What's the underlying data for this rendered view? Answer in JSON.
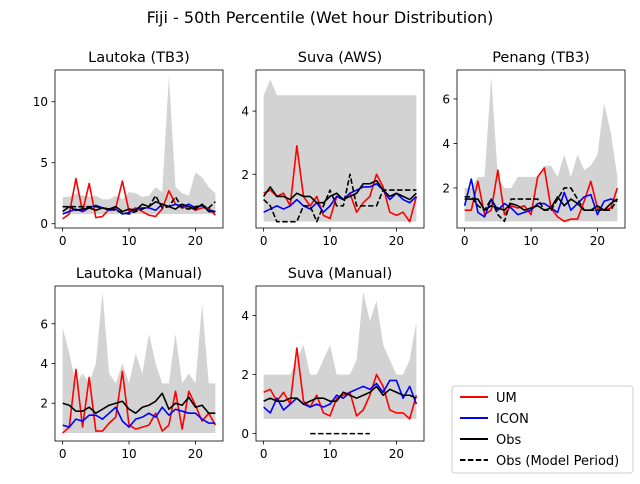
{
  "suptitle": "Fiji - 50th Percentile (Wet hour Distribution)",
  "colors": {
    "um": "#ff0000",
    "icon": "#0000ff",
    "obs": "#000000",
    "band": "#d3d3d3"
  },
  "legend": {
    "placement": "lower-right",
    "entries": [
      {
        "label": "UM",
        "color": "#ff0000",
        "style": "solid"
      },
      {
        "label": "ICON",
        "color": "#0000ff",
        "style": "solid"
      },
      {
        "label": "Obs",
        "color": "#000000",
        "style": "solid"
      },
      {
        "label": "Obs (Model Period)",
        "color": "#000000",
        "style": "dashed"
      }
    ]
  },
  "chart_data": [
    {
      "type": "line",
      "title": "Lautoka (TB3)",
      "xlim": [
        -1.15,
        24.15
      ],
      "ylim": [
        -0.35,
        12.6
      ],
      "xticks": [
        0,
        10,
        20
      ],
      "yticks": [
        0,
        5,
        10
      ],
      "band_lower": [
        0.8,
        0.8,
        0.8,
        0.8,
        0.8,
        0.8,
        0.8,
        0.8,
        0.8,
        0.8,
        0.8,
        0.8,
        0.8,
        0.8,
        0.8,
        0.8,
        0.8,
        0.8,
        0.8,
        0.8,
        0.8,
        0.8,
        0.8,
        0.8
      ],
      "band_upper": [
        2.2,
        2.2,
        2.5,
        2.3,
        2.2,
        2.3,
        2.0,
        2.0,
        2.3,
        2.0,
        2.6,
        2.5,
        2.2,
        2.3,
        3.0,
        2.6,
        12.1,
        3.0,
        2.5,
        2.3,
        4.2,
        3.8,
        3.0,
        2.5
      ],
      "series": [
        {
          "name": "UM",
          "values": [
            0.4,
            0.8,
            3.7,
            1.0,
            3.3,
            0.5,
            0.6,
            1.2,
            1.3,
            3.5,
            1.0,
            1.3,
            1.0,
            0.7,
            0.6,
            1.2,
            2.7,
            1.6,
            1.3,
            1.4,
            1.1,
            1.3,
            1.3,
            0.7
          ]
        },
        {
          "name": "ICON",
          "values": [
            0.8,
            1.0,
            1.2,
            1.0,
            1.3,
            1.5,
            1.3,
            1.1,
            1.2,
            0.8,
            0.9,
            1.2,
            1.3,
            1.3,
            1.1,
            1.6,
            1.4,
            1.6,
            1.4,
            1.6,
            1.3,
            1.5,
            1.1,
            1.0
          ]
        },
        {
          "name": "Obs",
          "values": [
            1.0,
            1.4,
            1.1,
            1.2,
            1.3,
            1.1,
            1.3,
            1.2,
            1.4,
            1.0,
            1.2,
            1.1,
            1.6,
            1.4,
            1.8,
            1.6,
            1.4,
            1.2,
            1.6,
            1.4,
            1.2,
            1.6,
            1.0,
            1.0
          ]
        },
        {
          "name": "Obs (Model Period)",
          "values": [
            1.4,
            1.4,
            1.4,
            1.4,
            1.4,
            1.4,
            1.3,
            1.2,
            1.1,
            0.9,
            0.8,
            1.0,
            1.2,
            1.4,
            2.3,
            1.3,
            1.4,
            2.2,
            1.3,
            1.2,
            1.4,
            1.5,
            1.3,
            1.8
          ]
        }
      ]
    },
    {
      "type": "line",
      "title": "Suva (AWS)",
      "xlim": [
        -1.15,
        24.15
      ],
      "ylim": [
        0.3,
        5.3
      ],
      "xticks": [
        0,
        10,
        20
      ],
      "yticks": [
        2,
        4
      ],
      "band_lower": [
        0.5,
        0.5,
        0.5,
        0.5,
        0.5,
        0.5,
        0.5,
        0.5,
        0.5,
        0.5,
        0.5,
        0.5,
        0.5,
        0.5,
        0.5,
        0.5,
        0.5,
        0.5,
        0.5,
        0.5,
        0.5,
        0.5,
        0.5,
        0.5
      ],
      "band_upper": [
        4.5,
        5.0,
        4.5,
        4.5,
        4.5,
        4.5,
        4.5,
        4.5,
        4.5,
        4.5,
        4.5,
        4.5,
        4.5,
        4.5,
        4.5,
        4.5,
        4.5,
        4.5,
        4.5,
        4.5,
        4.5,
        4.5,
        4.5,
        4.5
      ],
      "series": [
        {
          "name": "UM",
          "values": [
            1.4,
            1.5,
            1.3,
            1.4,
            1.0,
            2.9,
            1.3,
            1.0,
            1.3,
            0.7,
            0.6,
            1.3,
            1.2,
            1.4,
            0.8,
            1.1,
            1.3,
            2.0,
            1.6,
            0.8,
            0.7,
            0.8,
            0.5,
            1.3
          ]
        },
        {
          "name": "ICON",
          "values": [
            0.8,
            0.9,
            1.0,
            0.9,
            1.0,
            1.2,
            1.0,
            0.9,
            1.1,
            0.8,
            1.0,
            1.3,
            1.2,
            1.4,
            1.5,
            1.6,
            1.6,
            1.7,
            1.5,
            1.2,
            1.4,
            1.2,
            1.1,
            1.3
          ]
        },
        {
          "name": "Obs",
          "values": [
            1.3,
            1.6,
            1.3,
            1.3,
            1.2,
            1.4,
            1.3,
            1.3,
            1.1,
            1.1,
            1.3,
            1.4,
            1.2,
            1.3,
            1.4,
            1.7,
            1.7,
            1.8,
            1.5,
            1.3,
            1.4,
            1.3,
            1.2,
            1.4
          ]
        },
        {
          "name": "Obs (Model Period)",
          "values": [
            1.2,
            1.0,
            0.5,
            0.5,
            0.5,
            0.5,
            1.0,
            1.0,
            0.5,
            1.0,
            1.5,
            1.0,
            1.0,
            2.0,
            1.0,
            1.0,
            1.0,
            1.0,
            1.5,
            1.5,
            1.5,
            1.5,
            1.5,
            1.5
          ]
        }
      ]
    },
    {
      "type": "line",
      "title": "Penang (TB3)",
      "xlim": [
        -1.15,
        24.15
      ],
      "ylim": [
        0.2,
        7.3
      ],
      "xticks": [
        0,
        10,
        20
      ],
      "yticks": [
        2,
        4,
        6
      ],
      "band_lower": [
        0.5,
        0.5,
        0.5,
        0.5,
        0.5,
        0.5,
        0.5,
        0.5,
        0.5,
        0.5,
        0.5,
        0.5,
        0.5,
        0.5,
        0.5,
        0.5,
        0.5,
        0.5,
        0.5,
        0.5,
        0.5,
        0.5,
        0.5,
        0.5
      ],
      "band_upper": [
        2.0,
        2.0,
        2.5,
        2.5,
        7.0,
        2.5,
        2.0,
        2.0,
        2.5,
        2.5,
        2.5,
        2.5,
        3.0,
        3.0,
        2.5,
        3.5,
        2.5,
        3.5,
        2.8,
        3.0,
        3.5,
        5.8,
        4.5,
        2.5
      ],
      "series": [
        {
          "name": "UM",
          "values": [
            1.0,
            1.0,
            2.3,
            0.8,
            1.0,
            2.8,
            0.8,
            1.2,
            1.1,
            1.2,
            0.8,
            2.5,
            2.9,
            1.1,
            0.7,
            0.5,
            0.6,
            0.6,
            1.4,
            2.3,
            1.1,
            1.0,
            1.1,
            2.0
          ]
        },
        {
          "name": "ICON",
          "values": [
            1.2,
            2.4,
            0.9,
            0.7,
            1.5,
            1.0,
            1.3,
            1.1,
            0.8,
            0.9,
            1.0,
            1.3,
            1.3,
            1.1,
            0.9,
            1.8,
            1.0,
            1.3,
            1.6,
            1.7,
            0.8,
            1.4,
            1.5,
            1.4
          ]
        },
        {
          "name": "Obs",
          "values": [
            1.5,
            1.5,
            1.5,
            1.0,
            1.2,
            1.1,
            1.0,
            1.3,
            1.2,
            1.0,
            1.1,
            1.2,
            1.0,
            1.1,
            1.6,
            1.2,
            1.5,
            1.3,
            1.0,
            1.0,
            1.2,
            1.0,
            1.3,
            1.5
          ]
        },
        {
          "name": "Obs (Model Period)",
          "values": [
            1.6,
            1.6,
            1.2,
            1.0,
            1.5,
            0.8,
            0.5,
            1.5,
            1.5,
            1.5,
            1.5,
            1.5,
            1.0,
            1.0,
            1.5,
            2.0,
            2.0,
            1.5,
            1.0,
            1.0,
            1.0,
            1.0,
            1.0,
            1.5
          ]
        }
      ]
    },
    {
      "type": "line",
      "title": "Lautoka (Manual)",
      "xlim": [
        -1.15,
        24.15
      ],
      "ylim": [
        0.1,
        7.9
      ],
      "xticks": [
        0,
        10,
        20
      ],
      "yticks": [
        2,
        4,
        6
      ],
      "band_lower": [
        0.5,
        0.5,
        0.5,
        0.5,
        0.5,
        0.5,
        0.5,
        0.5,
        0.5,
        0.5,
        0.5,
        0.5,
        0.5,
        0.5,
        0.5,
        0.5,
        0.5,
        0.5,
        0.5,
        0.5,
        0.5,
        0.5,
        0.5,
        0.5
      ],
      "band_upper": [
        5.8,
        4.5,
        3.0,
        3.5,
        3.0,
        4.0,
        7.6,
        3.5,
        3.0,
        4.0,
        3.0,
        4.5,
        3.5,
        5.5,
        4.0,
        3.0,
        3.0,
        5.5,
        3.0,
        3.5,
        3.0,
        7.0,
        3.0,
        3.0
      ],
      "series": [
        {
          "name": "UM",
          "values": [
            0.5,
            0.8,
            3.7,
            0.8,
            3.3,
            0.6,
            0.6,
            1.0,
            1.3,
            3.6,
            0.9,
            0.7,
            0.8,
            0.9,
            1.5,
            0.6,
            0.9,
            2.6,
            0.7,
            2.6,
            1.9,
            1.1,
            1.5,
            0.9
          ]
        },
        {
          "name": "ICON",
          "values": [
            0.9,
            0.8,
            1.2,
            1.1,
            1.4,
            1.4,
            1.2,
            1.5,
            1.8,
            1.1,
            0.8,
            1.2,
            1.3,
            1.5,
            1.3,
            1.8,
            1.4,
            1.7,
            1.6,
            1.5,
            1.5,
            1.2,
            1.0,
            1.0
          ]
        },
        {
          "name": "Obs",
          "values": [
            2.0,
            1.9,
            1.6,
            1.6,
            1.8,
            1.5,
            1.7,
            1.9,
            2.0,
            2.1,
            1.7,
            1.5,
            1.8,
            1.9,
            2.1,
            2.5,
            1.7,
            2.0,
            1.9,
            2.3,
            1.8,
            1.9,
            1.5,
            1.5
          ]
        }
      ]
    },
    {
      "type": "line",
      "title": "Suva (Manual)",
      "xlim": [
        -1.15,
        24.15
      ],
      "ylim": [
        -0.25,
        5.0
      ],
      "xticks": [
        0,
        10,
        20
      ],
      "yticks": [
        0,
        2,
        4
      ],
      "band_lower": [
        0.5,
        0.5,
        0.5,
        0.5,
        0.5,
        0.5,
        0.5,
        0.5,
        0.5,
        0.5,
        0.5,
        0.5,
        0.5,
        0.5,
        0.5,
        0.5,
        0.5,
        0.5,
        0.5,
        0.5,
        0.5,
        0.5,
        0.5,
        0.5
      ],
      "band_upper": [
        2.0,
        2.0,
        2.0,
        2.0,
        2.0,
        2.5,
        3.0,
        2.0,
        2.0,
        2.5,
        3.0,
        2.0,
        2.0,
        2.0,
        2.5,
        4.8,
        3.8,
        4.5,
        3.0,
        2.5,
        2.0,
        2.0,
        2.5,
        3.8
      ],
      "series": [
        {
          "name": "UM",
          "values": [
            1.4,
            1.5,
            1.1,
            1.4,
            1.0,
            2.9,
            1.1,
            0.9,
            1.3,
            0.7,
            0.6,
            1.2,
            1.3,
            1.4,
            0.6,
            0.8,
            1.3,
            2.0,
            1.6,
            0.8,
            0.7,
            0.7,
            0.5,
            1.3
          ]
        },
        {
          "name": "ICON",
          "values": [
            0.9,
            0.7,
            1.2,
            0.8,
            1.0,
            1.2,
            1.0,
            0.9,
            1.0,
            0.9,
            1.0,
            1.3,
            1.2,
            1.4,
            1.5,
            1.6,
            1.5,
            1.7,
            1.4,
            1.8,
            1.8,
            1.2,
            1.6,
            1.0
          ]
        },
        {
          "name": "Obs",
          "values": [
            1.1,
            1.2,
            1.1,
            1.1,
            1.2,
            1.2,
            1.0,
            1.1,
            1.2,
            1.2,
            1.1,
            1.1,
            1.4,
            1.3,
            1.2,
            1.3,
            1.4,
            1.6,
            1.3,
            1.5,
            1.4,
            1.3,
            1.3,
            1.2
          ]
        },
        {
          "name": "Obs (Model Period)",
          "values": [
            null,
            null,
            null,
            null,
            null,
            null,
            null,
            0.0,
            0.0,
            0.0,
            0.0,
            0.0,
            0.0,
            0.0,
            0.0,
            0.0,
            0.0,
            null,
            null,
            null,
            null,
            null,
            null,
            null
          ]
        }
      ]
    }
  ]
}
